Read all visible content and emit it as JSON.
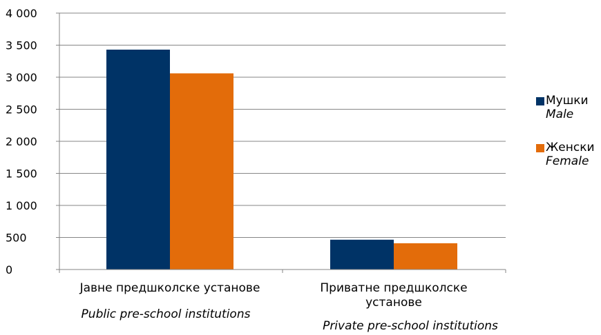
{
  "chart_data": {
    "type": "bar",
    "categories": [
      {
        "label": "Јавне предшколске установе",
        "label_lines": [
          "Јавне предшколске установе"
        ],
        "label_en": "Public pre-school institutions"
      },
      {
        "label": "Приватне предшколске установе",
        "label_lines": [
          "Приватне предшколске",
          "установе"
        ],
        "label_en": "Private pre-school institutions"
      }
    ],
    "series": [
      {
        "name": "Мушки",
        "name_en": "Male",
        "color": "#003366",
        "values": [
          3430,
          465
        ]
      },
      {
        "name": "Женски",
        "name_en": "Female",
        "color": "#E36C0A",
        "values": [
          3060,
          410
        ]
      }
    ],
    "ylim": [
      0,
      4000
    ],
    "yticks": [
      0,
      500,
      1000,
      1500,
      2000,
      2500,
      3000,
      3500,
      4000
    ],
    "ytick_labels": [
      "0",
      "500",
      "1 000",
      "1 500",
      "2 000",
      "2 500",
      "3 000",
      "3 500",
      "4 000"
    ],
    "grid": true,
    "legend_position": "right"
  }
}
